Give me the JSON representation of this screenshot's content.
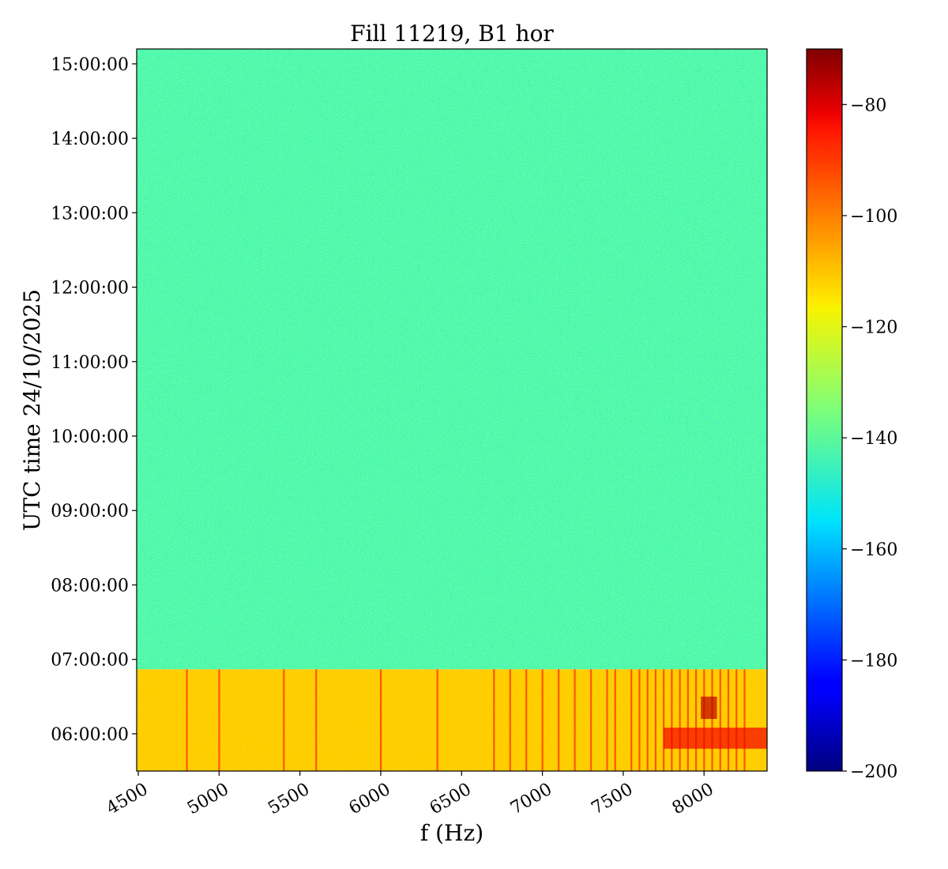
{
  "chart_data": {
    "type": "heatmap",
    "title": "Fill 11219, B1 hor",
    "xlabel": "f (Hz)",
    "ylabel": "UTC time 24/10/2025",
    "colormap": "jet",
    "xlim": [
      4490,
      8390
    ],
    "x_ticks": [
      4500,
      5000,
      5500,
      6000,
      6500,
      7000,
      7500,
      8000
    ],
    "x_tick_labels": [
      "4500",
      "5000",
      "5500",
      "6000",
      "6500",
      "7000",
      "7500",
      "8000"
    ],
    "ylim": [
      "05:30:00",
      "15:12:00"
    ],
    "y_ticks": [
      "06:00:00",
      "07:00:00",
      "08:00:00",
      "09:00:00",
      "10:00:00",
      "11:00:00",
      "12:00:00",
      "13:00:00",
      "14:00:00",
      "15:00:00"
    ],
    "y_tick_labels": [
      "06:00:00",
      "07:00:00",
      "08:00:00",
      "09:00:00",
      "10:00:00",
      "11:00:00",
      "12:00:00",
      "13:00:00",
      "14:00:00",
      "15:00:00"
    ],
    "colorbar": {
      "vmin": -200,
      "vmax": -70,
      "ticks": [
        -80,
        -100,
        -120,
        -140,
        -160,
        -180,
        -200
      ],
      "tick_labels": [
        "−80",
        "−100",
        "−120",
        "−140",
        "−160",
        "−180",
        "−200"
      ]
    },
    "regions": [
      {
        "time_start": "06:52:00",
        "time_end": "15:12:00",
        "f_start": 4490,
        "f_end": 8390,
        "level": -140
      },
      {
        "time_start": "05:30:00",
        "time_end": "06:52:00",
        "f_start": 4490,
        "f_end": 8390,
        "level": -113
      }
    ],
    "lines": [
      4800,
      5000,
      5400,
      5600,
      6000,
      6350,
      6700,
      6800,
      6900,
      7000,
      7100,
      7200,
      7300,
      7400,
      7450,
      7550,
      7600,
      7650,
      7700,
      7750,
      7800,
      7850,
      7900,
      7950,
      8000,
      8050,
      8100,
      8150,
      8200,
      8250
    ],
    "hotspots": [
      {
        "f_start": 7750,
        "f_end": 8400,
        "time_start": "05:48:00",
        "time_end": "06:05:00",
        "level": -85
      },
      {
        "f_start": 7980,
        "f_end": 8080,
        "time_start": "06:12:00",
        "time_end": "06:30:00",
        "level": -78
      }
    ],
    "grid": false
  }
}
